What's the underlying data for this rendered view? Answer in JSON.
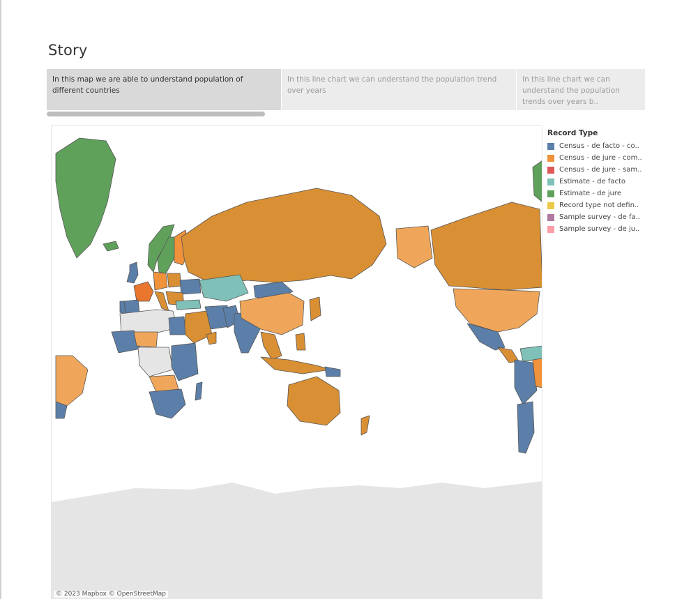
{
  "story": {
    "title": "Story",
    "points": [
      {
        "caption": "In this map we are able to understand population of different countries"
      },
      {
        "caption": "In this line chart we can understand the population trend over years"
      },
      {
        "caption": "In this line chart we can understand the population trends over years b.."
      }
    ],
    "active_point": 0
  },
  "map": {
    "attribution": "© 2023 Mapbox © OpenStreetMap"
  },
  "legend": {
    "title": "Record Type",
    "items": [
      {
        "label": "Census - de facto - co..",
        "color": "#5b7fa8"
      },
      {
        "label": "Census - de jure - com..",
        "color": "#f0923b"
      },
      {
        "label": "Census - de jure - sam..",
        "color": "#e15759"
      },
      {
        "label": "Estimate - de facto",
        "color": "#7fc0b8"
      },
      {
        "label": "Estimate - de jure",
        "color": "#5fa15b"
      },
      {
        "label": "Record type not defin..",
        "color": "#edc948"
      },
      {
        "label": "Sample survey - de fa..",
        "color": "#b07aa1"
      },
      {
        "label": "Sample survey - de ju..",
        "color": "#ff9da7"
      }
    ]
  },
  "colors": {
    "land_nodata": "#e5e5e5",
    "border": "#555555",
    "census_de_jure_dark": "#d98f33"
  }
}
